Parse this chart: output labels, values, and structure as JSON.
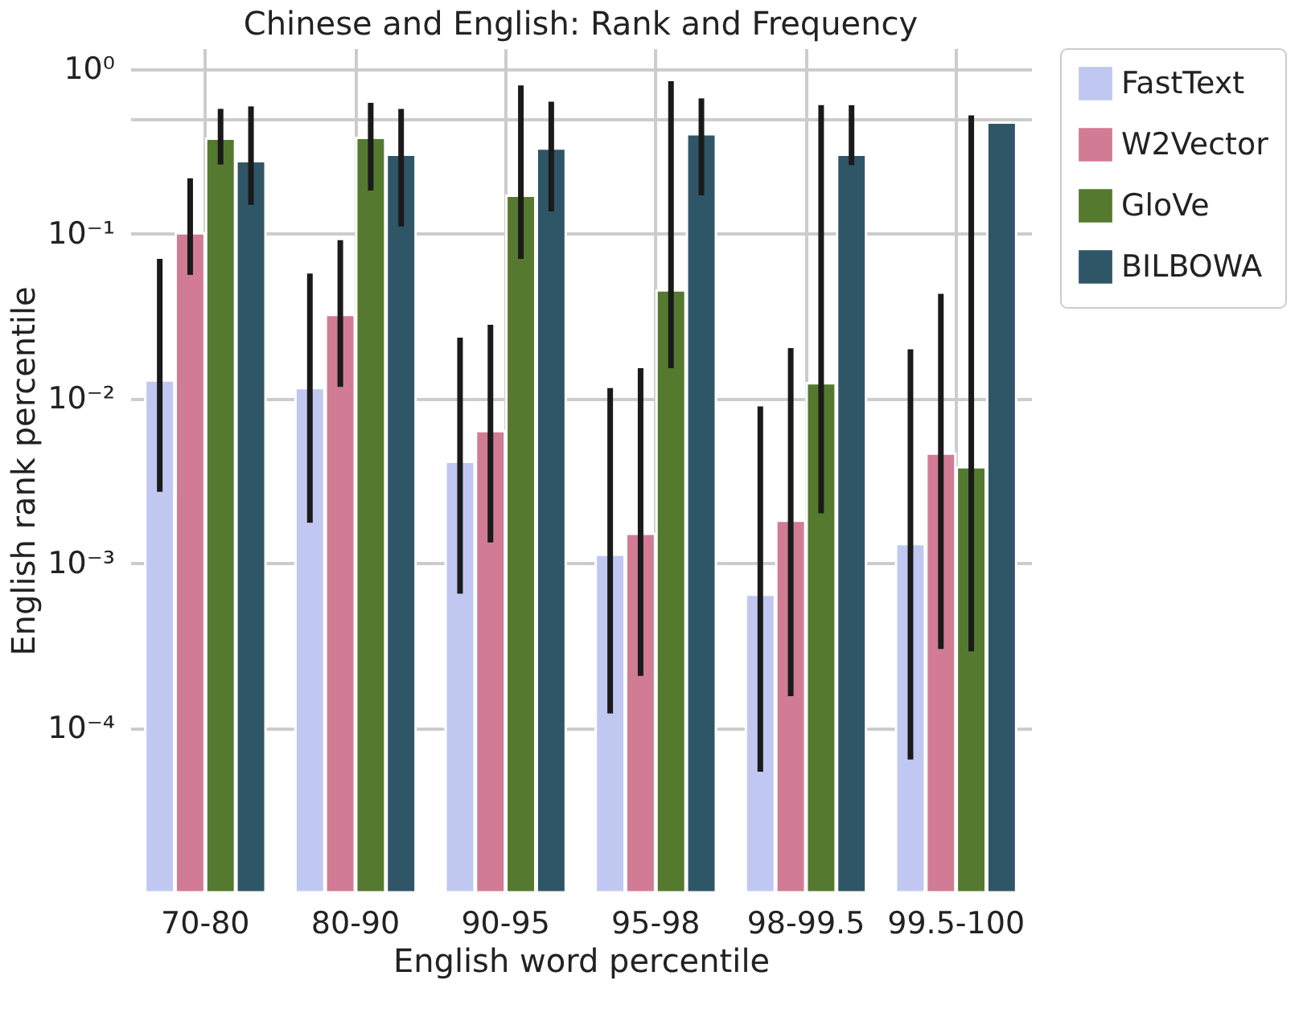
{
  "chart_data": {
    "type": "bar",
    "title": "Chinese and English: Rank and Frequency",
    "xlabel": "English word percentile",
    "ylabel": "English rank percentile",
    "categories": [
      "70-80",
      "80-90",
      "90-95",
      "95-98",
      "98-99.5",
      "99.5-100"
    ],
    "series": [
      {
        "name": "FastText",
        "color": "#c0c8f2",
        "values": [
          0.0128,
          0.0115,
          0.0041,
          0.00112,
          0.00064,
          0.0013
        ],
        "errors": [
          [
            0.0027,
            0.07
          ],
          [
            0.00175,
            0.057
          ],
          [
            0.00065,
            0.0233
          ],
          [
            0.000122,
            0.0115
          ],
          [
            5.4e-05,
            0.0089
          ],
          [
            6.4e-05,
            0.0198
          ]
        ]
      },
      {
        "name": "W2Vector",
        "color": "#d17c94",
        "values": [
          0.1,
          0.032,
          0.0063,
          0.0015,
          0.0018,
          0.0046
        ],
        "errors": [
          [
            0.056,
            0.216
          ],
          [
            0.0117,
            0.091
          ],
          [
            0.00133,
            0.0279
          ],
          [
            0.000206,
            0.0152
          ],
          [
            0.000155,
            0.0201
          ],
          [
            0.0003,
            0.043
          ]
        ]
      },
      {
        "name": "GloVe",
        "color": "#557a2f",
        "values": [
          0.376,
          0.38,
          0.169,
          0.045,
          0.0123,
          0.0038
        ],
        "errors": [
          [
            0.262,
            0.57
          ],
          [
            0.182,
            0.62
          ],
          [
            0.07,
            0.79
          ],
          [
            0.0152,
            0.84
          ],
          [
            0.002,
            0.6
          ],
          [
            0.00029,
            0.52
          ]
        ]
      },
      {
        "name": "BILBOWA",
        "color": "#2f5667",
        "values": [
          0.274,
          0.3,
          0.327,
          0.4,
          0.3,
          0.47
        ],
        "errors": [
          [
            0.149,
            0.59
          ],
          [
            0.11,
            0.57
          ],
          [
            0.136,
            0.63
          ],
          [
            0.17,
            0.66
          ],
          [
            0.26,
            0.6
          ],
          null
        ]
      }
    ],
    "log": true,
    "ylim": [
      1e-05,
      1.33
    ],
    "yticks": [
      {
        "value": 0.0001,
        "label": "10⁻⁴"
      },
      {
        "value": 0.001,
        "label": "10⁻³"
      },
      {
        "value": 0.01,
        "label": "10⁻²"
      },
      {
        "value": 0.1,
        "label": "10⁻¹"
      },
      {
        "value": 0.5,
        "label": null
      },
      {
        "value": 1,
        "label": "10⁰"
      }
    ],
    "grid": true,
    "legend": "top right"
  }
}
